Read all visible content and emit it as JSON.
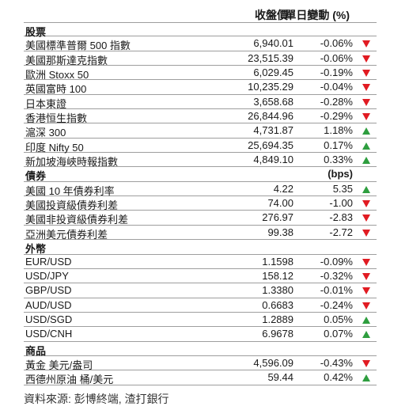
{
  "header": {
    "close": "收盤價",
    "change": "單日變動 (%)"
  },
  "sections": [
    {
      "title": "股票",
      "unit": "",
      "rows": [
        {
          "name": "美國標準普爾 500 指數",
          "value": "6,940.01",
          "change": "-0.06%",
          "dir": "down"
        },
        {
          "name": "美國那斯達克指數",
          "value": "23,515.39",
          "change": "-0.06%",
          "dir": "down"
        },
        {
          "name": "歐洲 Stoxx 50",
          "value": "6,029.45",
          "change": "-0.19%",
          "dir": "down"
        },
        {
          "name": "英國富時 100",
          "value": "10,235.29",
          "change": "-0.04%",
          "dir": "down"
        },
        {
          "name": "日本東證",
          "value": "3,658.68",
          "change": "-0.28%",
          "dir": "down"
        },
        {
          "name": "香港恒生指數",
          "value": "26,844.96",
          "change": "-0.29%",
          "dir": "down"
        },
        {
          "name": "滬深 300",
          "value": "4,731.87",
          "change": "1.18%",
          "dir": "up"
        },
        {
          "name": "印度 Nifty 50",
          "value": "25,694.35",
          "change": "0.17%",
          "dir": "up"
        },
        {
          "name": "新加坡海峽時報指數",
          "value": "4,849.10",
          "change": "0.33%",
          "dir": "up"
        }
      ]
    },
    {
      "title": "債券",
      "unit": "(bps)",
      "rows": [
        {
          "name": "美國 10 年債券利率",
          "value": "4.22",
          "change": "5.35",
          "dir": "up"
        },
        {
          "name": "美國投資級債券利差",
          "value": "74.00",
          "change": "-1.00",
          "dir": "down"
        },
        {
          "name": "美國非投資級債券利差",
          "value": "276.97",
          "change": "-2.83",
          "dir": "down"
        },
        {
          "name": "亞洲美元債券利差",
          "value": "99.38",
          "change": "-2.72",
          "dir": "down"
        }
      ]
    },
    {
      "title": "外幣",
      "unit": "",
      "rows": [
        {
          "name": "EUR/USD",
          "value": "1.1598",
          "change": "-0.09%",
          "dir": "down"
        },
        {
          "name": "USD/JPY",
          "value": "158.12",
          "change": "-0.32%",
          "dir": "down"
        },
        {
          "name": "GBP/USD",
          "value": "1.3380",
          "change": "-0.01%",
          "dir": "down"
        },
        {
          "name": "AUD/USD",
          "value": "0.6683",
          "change": "-0.24%",
          "dir": "down"
        },
        {
          "name": "USD/SGD",
          "value": "1.2889",
          "change": "0.05%",
          "dir": "up"
        },
        {
          "name": "USD/CNH",
          "value": "6.9678",
          "change": "0.07%",
          "dir": "up"
        }
      ]
    },
    {
      "title": "商品",
      "unit": "",
      "rows": [
        {
          "name": "黃金 美元/盎司",
          "value": "4,596.09",
          "change": "-0.43%",
          "dir": "down"
        },
        {
          "name": "西德州原油 桶/美元",
          "value": "59.44",
          "change": "0.42%",
          "dir": "up"
        }
      ]
    }
  ],
  "source": "資料來源: 彭博終端, 渣打銀行"
}
